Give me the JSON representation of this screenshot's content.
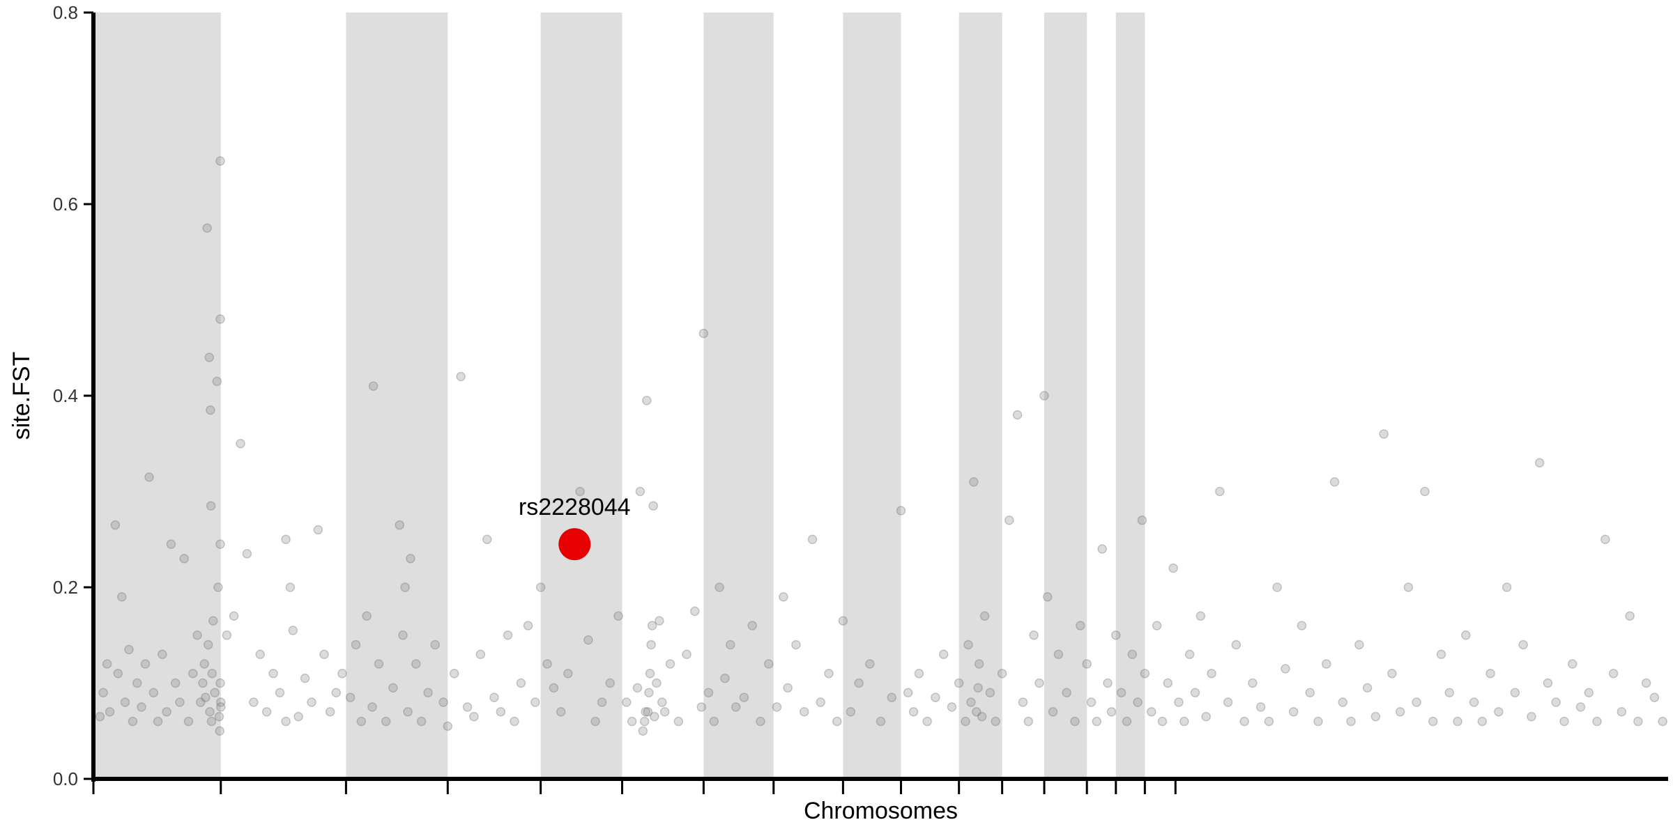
{
  "chart_data": {
    "type": "scatter",
    "title": "",
    "xlabel": "Chromosomes",
    "ylabel": "site.FST",
    "ylim": [
      0,
      0.8
    ],
    "yticks": [
      "0.0",
      "0.2",
      "0.4",
      "0.6",
      "0.8"
    ],
    "grid": false,
    "legend": "none",
    "x_unit": "cumulative genomic position (Mb)",
    "xlim": [
      0,
      2880
    ],
    "chromosome_boundaries": [
      0,
      233,
      462,
      648,
      818,
      967,
      1116,
      1244,
      1371,
      1477,
      1583,
      1662,
      1739,
      1817,
      1870,
      1923,
      1979
    ],
    "shaded_chromosomes": [
      1,
      3,
      5,
      7,
      9,
      11,
      13,
      15,
      17
    ],
    "highlight": {
      "label": "rs2228044",
      "x": 880,
      "y": 0.245,
      "color": "#e60000"
    },
    "point_color": "#808080",
    "points": [
      [
        12,
        0.065
      ],
      [
        18,
        0.09
      ],
      [
        25,
        0.12
      ],
      [
        30,
        0.07
      ],
      [
        40,
        0.265
      ],
      [
        45,
        0.11
      ],
      [
        52,
        0.19
      ],
      [
        58,
        0.08
      ],
      [
        65,
        0.135
      ],
      [
        72,
        0.06
      ],
      [
        80,
        0.1
      ],
      [
        88,
        0.075
      ],
      [
        95,
        0.12
      ],
      [
        102,
        0.315
      ],
      [
        110,
        0.09
      ],
      [
        118,
        0.06
      ],
      [
        126,
        0.13
      ],
      [
        134,
        0.07
      ],
      [
        142,
        0.245
      ],
      [
        150,
        0.1
      ],
      [
        158,
        0.08
      ],
      [
        166,
        0.23
      ],
      [
        174,
        0.06
      ],
      [
        182,
        0.11
      ],
      [
        190,
        0.15
      ],
      [
        196,
        0.08
      ],
      [
        200,
        0.1
      ],
      [
        203,
        0.12
      ],
      [
        205,
        0.085
      ],
      [
        208,
        0.575
      ],
      [
        210,
        0.14
      ],
      [
        212,
        0.44
      ],
      [
        213,
        0.07
      ],
      [
        214,
        0.385
      ],
      [
        215,
        0.285
      ],
      [
        216,
        0.06
      ],
      [
        217,
        0.11
      ],
      [
        219,
        0.165
      ],
      [
        222,
        0.09
      ],
      [
        226,
        0.415
      ],
      [
        228,
        0.2
      ],
      [
        230,
        0.065
      ],
      [
        231,
        0.05
      ],
      [
        232,
        0.245
      ],
      [
        232,
        0.48
      ],
      [
        232,
        0.645
      ],
      [
        232,
        0.1
      ],
      [
        233,
        0.08
      ],
      [
        233,
        0.075
      ],
      [
        244,
        0.15
      ],
      [
        257,
        0.17
      ],
      [
        269,
        0.35
      ],
      [
        281,
        0.235
      ],
      [
        293,
        0.08
      ],
      [
        305,
        0.13
      ],
      [
        317,
        0.07
      ],
      [
        329,
        0.11
      ],
      [
        341,
        0.09
      ],
      [
        352,
        0.25
      ],
      [
        352,
        0.06
      ],
      [
        360,
        0.2
      ],
      [
        365,
        0.155
      ],
      [
        375,
        0.065
      ],
      [
        387,
        0.105
      ],
      [
        399,
        0.08
      ],
      [
        411,
        0.26
      ],
      [
        422,
        0.13
      ],
      [
        433,
        0.07
      ],
      [
        444,
        0.09
      ],
      [
        455,
        0.11
      ],
      [
        470,
        0.085
      ],
      [
        480,
        0.14
      ],
      [
        490,
        0.06
      ],
      [
        500,
        0.17
      ],
      [
        510,
        0.075
      ],
      [
        512,
        0.41
      ],
      [
        522,
        0.12
      ],
      [
        535,
        0.06
      ],
      [
        548,
        0.095
      ],
      [
        560,
        0.265
      ],
      [
        566,
        0.15
      ],
      [
        570,
        0.2
      ],
      [
        575,
        0.07
      ],
      [
        580,
        0.23
      ],
      [
        590,
        0.12
      ],
      [
        600,
        0.06
      ],
      [
        612,
        0.09
      ],
      [
        625,
        0.14
      ],
      [
        640,
        0.08
      ],
      [
        648,
        0.055
      ],
      [
        660,
        0.11
      ],
      [
        672,
        0.42
      ],
      [
        684,
        0.075
      ],
      [
        696,
        0.065
      ],
      [
        708,
        0.13
      ],
      [
        720,
        0.25
      ],
      [
        733,
        0.085
      ],
      [
        745,
        0.07
      ],
      [
        758,
        0.15
      ],
      [
        770,
        0.06
      ],
      [
        782,
        0.1
      ],
      [
        795,
        0.16
      ],
      [
        808,
        0.08
      ],
      [
        818,
        0.2
      ],
      [
        830,
        0.12
      ],
      [
        842,
        0.095
      ],
      [
        855,
        0.07
      ],
      [
        868,
        0.11
      ],
      [
        890,
        0.3
      ],
      [
        905,
        0.145
      ],
      [
        918,
        0.06
      ],
      [
        930,
        0.08
      ],
      [
        945,
        0.1
      ],
      [
        960,
        0.17
      ],
      [
        975,
        0.08
      ],
      [
        985,
        0.06
      ],
      [
        995,
        0.095
      ],
      [
        1000,
        0.3
      ],
      [
        1005,
        0.05
      ],
      [
        1008,
        0.06
      ],
      [
        1010,
        0.07
      ],
      [
        1012,
        0.395
      ],
      [
        1014,
        0.07
      ],
      [
        1016,
        0.09
      ],
      [
        1018,
        0.11
      ],
      [
        1020,
        0.14
      ],
      [
        1022,
        0.16
      ],
      [
        1024,
        0.285
      ],
      [
        1026,
        0.065
      ],
      [
        1030,
        0.1
      ],
      [
        1035,
        0.165
      ],
      [
        1040,
        0.08
      ],
      [
        1045,
        0.07
      ],
      [
        1055,
        0.12
      ],
      [
        1070,
        0.06
      ],
      [
        1085,
        0.13
      ],
      [
        1100,
        0.175
      ],
      [
        1112,
        0.075
      ],
      [
        1116,
        0.465
      ],
      [
        1125,
        0.09
      ],
      [
        1135,
        0.06
      ],
      [
        1145,
        0.2
      ],
      [
        1155,
        0.105
      ],
      [
        1165,
        0.14
      ],
      [
        1175,
        0.075
      ],
      [
        1190,
        0.085
      ],
      [
        1205,
        0.16
      ],
      [
        1220,
        0.06
      ],
      [
        1235,
        0.12
      ],
      [
        1250,
        0.075
      ],
      [
        1262,
        0.19
      ],
      [
        1270,
        0.095
      ],
      [
        1285,
        0.14
      ],
      [
        1300,
        0.07
      ],
      [
        1315,
        0.25
      ],
      [
        1330,
        0.08
      ],
      [
        1345,
        0.11
      ],
      [
        1360,
        0.06
      ],
      [
        1371,
        0.165
      ],
      [
        1385,
        0.07
      ],
      [
        1400,
        0.1
      ],
      [
        1420,
        0.12
      ],
      [
        1440,
        0.06
      ],
      [
        1460,
        0.085
      ],
      [
        1477,
        0.28
      ],
      [
        1490,
        0.09
      ],
      [
        1500,
        0.07
      ],
      [
        1510,
        0.11
      ],
      [
        1525,
        0.06
      ],
      [
        1540,
        0.085
      ],
      [
        1555,
        0.13
      ],
      [
        1570,
        0.075
      ],
      [
        1583,
        0.1
      ],
      [
        1595,
        0.06
      ],
      [
        1600,
        0.14
      ],
      [
        1605,
        0.08
      ],
      [
        1610,
        0.31
      ],
      [
        1615,
        0.07
      ],
      [
        1618,
        0.095
      ],
      [
        1620,
        0.12
      ],
      [
        1625,
        0.065
      ],
      [
        1630,
        0.17
      ],
      [
        1640,
        0.09
      ],
      [
        1650,
        0.06
      ],
      [
        1662,
        0.11
      ],
      [
        1675,
        0.27
      ],
      [
        1690,
        0.38
      ],
      [
        1700,
        0.08
      ],
      [
        1710,
        0.06
      ],
      [
        1720,
        0.15
      ],
      [
        1730,
        0.1
      ],
      [
        1739,
        0.4
      ],
      [
        1745,
        0.19
      ],
      [
        1755,
        0.07
      ],
      [
        1765,
        0.13
      ],
      [
        1780,
        0.09
      ],
      [
        1795,
        0.06
      ],
      [
        1805,
        0.16
      ],
      [
        1817,
        0.12
      ],
      [
        1825,
        0.08
      ],
      [
        1835,
        0.06
      ],
      [
        1845,
        0.24
      ],
      [
        1855,
        0.1
      ],
      [
        1862,
        0.07
      ],
      [
        1870,
        0.15
      ],
      [
        1880,
        0.09
      ],
      [
        1890,
        0.06
      ],
      [
        1900,
        0.13
      ],
      [
        1910,
        0.08
      ],
      [
        1918,
        0.27
      ],
      [
        1923,
        0.11
      ],
      [
        1935,
        0.07
      ],
      [
        1945,
        0.16
      ],
      [
        1955,
        0.06
      ],
      [
        1965,
        0.1
      ],
      [
        1975,
        0.22
      ],
      [
        1985,
        0.08
      ],
      [
        1995,
        0.06
      ],
      [
        2005,
        0.13
      ],
      [
        2015,
        0.09
      ],
      [
        2025,
        0.17
      ],
      [
        2035,
        0.065
      ],
      [
        2045,
        0.11
      ],
      [
        2060,
        0.3
      ],
      [
        2075,
        0.08
      ],
      [
        2090,
        0.14
      ],
      [
        2105,
        0.06
      ],
      [
        2120,
        0.1
      ],
      [
        2135,
        0.075
      ],
      [
        2150,
        0.06
      ],
      [
        2165,
        0.2
      ],
      [
        2180,
        0.115
      ],
      [
        2195,
        0.07
      ],
      [
        2210,
        0.16
      ],
      [
        2225,
        0.09
      ],
      [
        2240,
        0.06
      ],
      [
        2255,
        0.12
      ],
      [
        2270,
        0.31
      ],
      [
        2285,
        0.08
      ],
      [
        2300,
        0.06
      ],
      [
        2315,
        0.14
      ],
      [
        2330,
        0.095
      ],
      [
        2345,
        0.065
      ],
      [
        2360,
        0.36
      ],
      [
        2375,
        0.11
      ],
      [
        2390,
        0.07
      ],
      [
        2405,
        0.2
      ],
      [
        2420,
        0.08
      ],
      [
        2435,
        0.3
      ],
      [
        2450,
        0.06
      ],
      [
        2465,
        0.13
      ],
      [
        2480,
        0.09
      ],
      [
        2495,
        0.06
      ],
      [
        2510,
        0.15
      ],
      [
        2525,
        0.08
      ],
      [
        2540,
        0.06
      ],
      [
        2555,
        0.11
      ],
      [
        2570,
        0.07
      ],
      [
        2585,
        0.2
      ],
      [
        2600,
        0.09
      ],
      [
        2615,
        0.14
      ],
      [
        2630,
        0.065
      ],
      [
        2645,
        0.33
      ],
      [
        2660,
        0.1
      ],
      [
        2675,
        0.08
      ],
      [
        2690,
        0.06
      ],
      [
        2705,
        0.12
      ],
      [
        2720,
        0.075
      ],
      [
        2735,
        0.09
      ],
      [
        2750,
        0.06
      ],
      [
        2765,
        0.25
      ],
      [
        2780,
        0.11
      ],
      [
        2795,
        0.07
      ],
      [
        2810,
        0.17
      ],
      [
        2825,
        0.06
      ],
      [
        2840,
        0.1
      ],
      [
        2855,
        0.085
      ],
      [
        2870,
        0.06
      ]
    ]
  }
}
